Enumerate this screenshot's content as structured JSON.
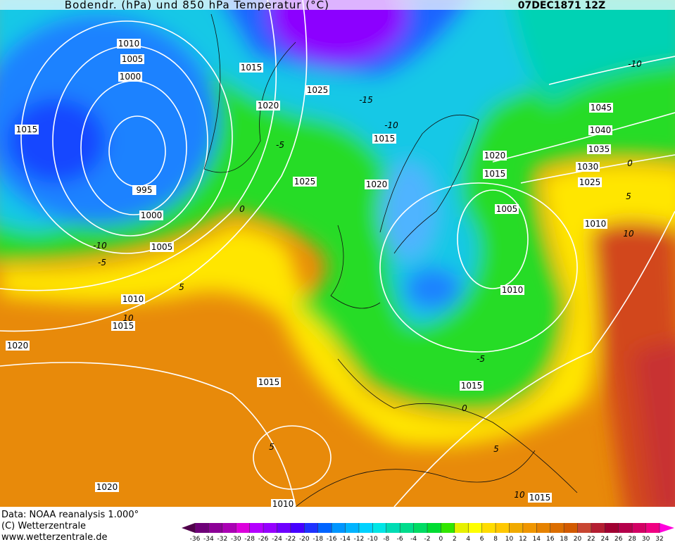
{
  "map": {
    "title": "Bodendr. (hPa) und 850 hPa Temperatur (°C)",
    "date": "07DEC1871 12Z",
    "isobar_labels": [
      1010,
      1005,
      1000,
      1015,
      995,
      1000,
      1005,
      1010,
      1015,
      1020,
      1015,
      1020,
      1010,
      1015,
      1015,
      1010,
      1010,
      1005,
      1020,
      1015,
      1025,
      1030,
      1035,
      1040,
      1045,
      1025,
      1020,
      1015,
      1020,
      1025,
      1015
    ],
    "temperature_labels": [
      -10,
      -15,
      -10,
      -5,
      0,
      -10,
      -5,
      5,
      10,
      0,
      5,
      10,
      -5,
      0,
      5,
      10,
      5
    ]
  },
  "footer": [
    "Data: NOAA reanalysis 1.000°",
    "(C) Wetterzentrale",
    "www.wetterzentrale.de"
  ],
  "colorbar": {
    "ticks": [
      -36,
      -34,
      -32,
      -30,
      -28,
      -26,
      -24,
      -22,
      -20,
      -18,
      -16,
      -14,
      -12,
      -10,
      -8,
      -6,
      -4,
      -2,
      0,
      2,
      4,
      6,
      8,
      10,
      12,
      14,
      16,
      18,
      20,
      22,
      24,
      26,
      28,
      30,
      32
    ],
    "colors": [
      "#50004b",
      "#6e0078",
      "#8c0096",
      "#aa00b4",
      "#dc00dc",
      "#b400ff",
      "#9600ff",
      "#6e00ff",
      "#4600ff",
      "#1e32ff",
      "#0064ff",
      "#0096ff",
      "#00b4ff",
      "#00d2ff",
      "#00e6e6",
      "#00dcb4",
      "#00dc8c",
      "#00dc64",
      "#00dc32",
      "#32e600",
      "#e6f000",
      "#ffff00",
      "#ffdc00",
      "#ffc800",
      "#f0aa00",
      "#f09600",
      "#e68200",
      "#dc6e00",
      "#d25a00",
      "#c84632",
      "#b41e32",
      "#a00032",
      "#b4004b",
      "#d20064",
      "#f00082",
      "#ff00dc"
    ]
  }
}
